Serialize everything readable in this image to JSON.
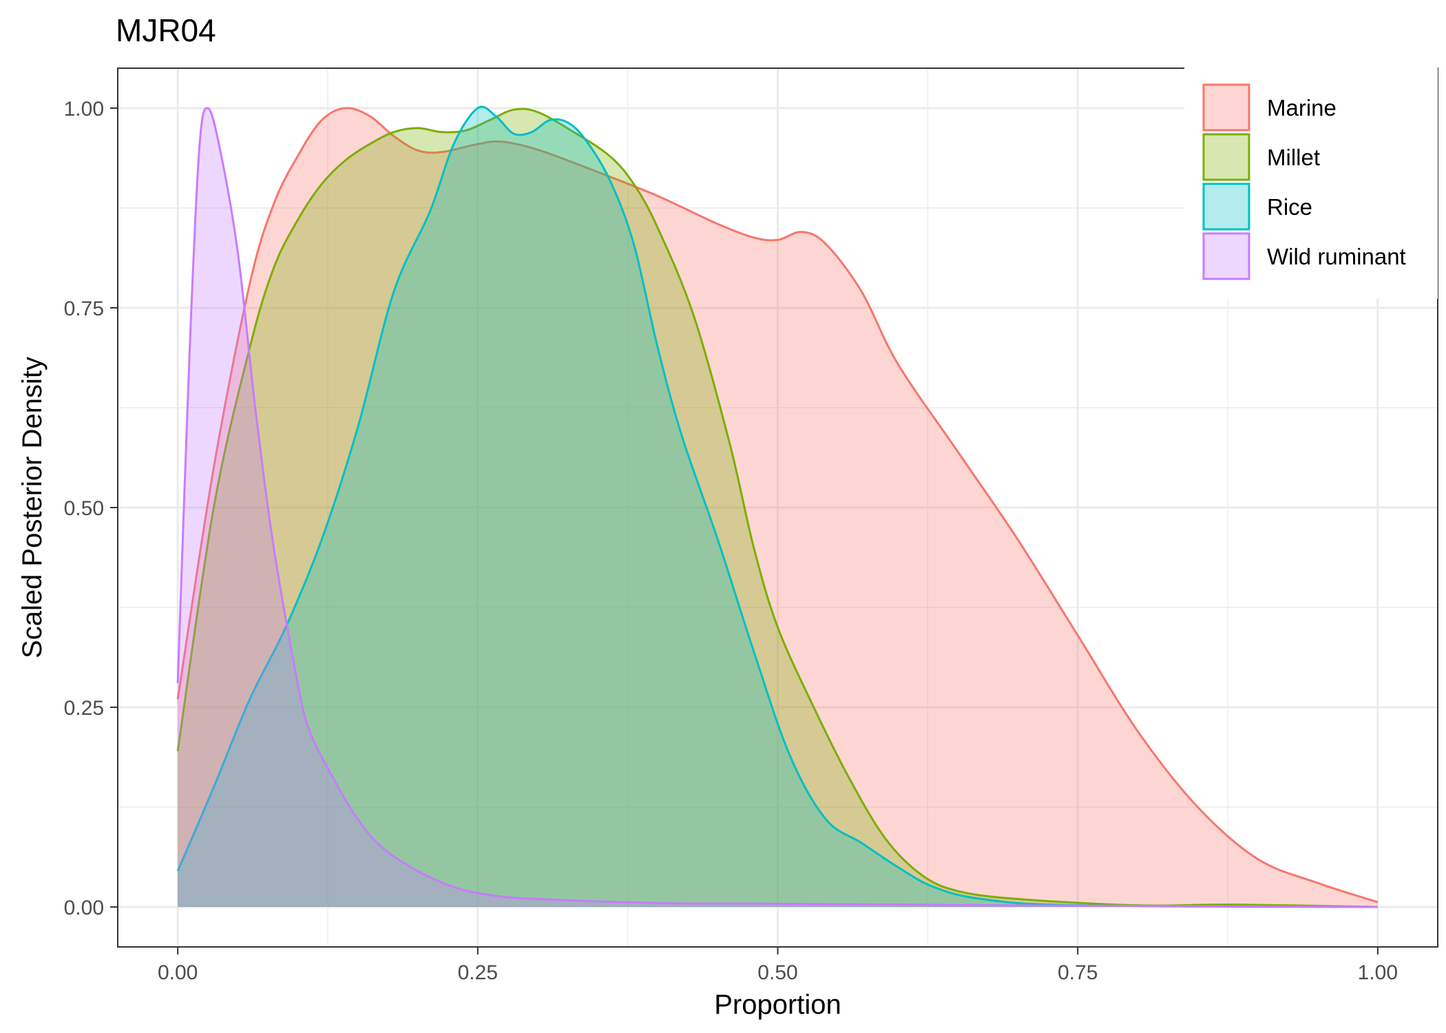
{
  "chart_data": {
    "type": "area",
    "title": "MJR04",
    "xlabel": "Proportion",
    "ylabel": "Scaled Posterior Density",
    "xlim": [
      -0.05,
      1.05
    ],
    "ylim": [
      -0.05,
      1.05
    ],
    "x_ticks": [
      0,
      0.25,
      0.5,
      0.75,
      1.0
    ],
    "x_tick_labels": [
      "0.00",
      "0.25",
      "0.50",
      "0.75",
      "1.00"
    ],
    "y_ticks": [
      0,
      0.25,
      0.5,
      0.75,
      1.0
    ],
    "y_tick_labels": [
      "0.00",
      "0.25",
      "0.50",
      "0.75",
      "1.00"
    ],
    "grid": true,
    "legend_position": "top-right",
    "series": [
      {
        "name": "Marine",
        "color": "#F8766D",
        "points": [
          [
            0,
            0.26
          ],
          [
            0.03,
            0.55
          ],
          [
            0.06,
            0.78
          ],
          [
            0.08,
            0.88
          ],
          [
            0.1,
            0.94
          ],
          [
            0.12,
            0.985
          ],
          [
            0.14,
            1.0
          ],
          [
            0.16,
            0.99
          ],
          [
            0.18,
            0.965
          ],
          [
            0.2,
            0.947
          ],
          [
            0.22,
            0.945
          ],
          [
            0.25,
            0.955
          ],
          [
            0.27,
            0.958
          ],
          [
            0.3,
            0.948
          ],
          [
            0.35,
            0.92
          ],
          [
            0.4,
            0.89
          ],
          [
            0.45,
            0.855
          ],
          [
            0.48,
            0.838
          ],
          [
            0.5,
            0.835
          ],
          [
            0.52,
            0.845
          ],
          [
            0.54,
            0.83
          ],
          [
            0.57,
            0.77
          ],
          [
            0.6,
            0.68
          ],
          [
            0.65,
            0.57
          ],
          [
            0.7,
            0.46
          ],
          [
            0.75,
            0.34
          ],
          [
            0.8,
            0.22
          ],
          [
            0.85,
            0.125
          ],
          [
            0.9,
            0.06
          ],
          [
            0.95,
            0.03
          ],
          [
            1.0,
            0.006
          ]
        ]
      },
      {
        "name": "Millet",
        "color": "#7CAE00",
        "points": [
          [
            0,
            0.195
          ],
          [
            0.03,
            0.5
          ],
          [
            0.06,
            0.7
          ],
          [
            0.08,
            0.8
          ],
          [
            0.1,
            0.86
          ],
          [
            0.12,
            0.905
          ],
          [
            0.14,
            0.935
          ],
          [
            0.16,
            0.955
          ],
          [
            0.18,
            0.97
          ],
          [
            0.2,
            0.975
          ],
          [
            0.22,
            0.97
          ],
          [
            0.24,
            0.972
          ],
          [
            0.26,
            0.985
          ],
          [
            0.28,
            0.998
          ],
          [
            0.3,
            0.995
          ],
          [
            0.33,
            0.97
          ],
          [
            0.36,
            0.94
          ],
          [
            0.38,
            0.905
          ],
          [
            0.4,
            0.85
          ],
          [
            0.43,
            0.74
          ],
          [
            0.46,
            0.58
          ],
          [
            0.48,
            0.45
          ],
          [
            0.5,
            0.35
          ],
          [
            0.53,
            0.25
          ],
          [
            0.56,
            0.16
          ],
          [
            0.59,
            0.085
          ],
          [
            0.62,
            0.04
          ],
          [
            0.65,
            0.02
          ],
          [
            0.7,
            0.01
          ],
          [
            0.8,
            0.002
          ],
          [
            0.88,
            0.003
          ],
          [
            1.0,
            0.0
          ]
        ]
      },
      {
        "name": "Rice",
        "color": "#00BFC4",
        "points": [
          [
            0,
            0.045
          ],
          [
            0.03,
            0.15
          ],
          [
            0.06,
            0.26
          ],
          [
            0.09,
            0.35
          ],
          [
            0.12,
            0.46
          ],
          [
            0.15,
            0.6
          ],
          [
            0.18,
            0.77
          ],
          [
            0.21,
            0.87
          ],
          [
            0.23,
            0.955
          ],
          [
            0.25,
            1.0
          ],
          [
            0.265,
            0.99
          ],
          [
            0.28,
            0.968
          ],
          [
            0.295,
            0.97
          ],
          [
            0.31,
            0.985
          ],
          [
            0.325,
            0.982
          ],
          [
            0.34,
            0.96
          ],
          [
            0.36,
            0.91
          ],
          [
            0.38,
            0.83
          ],
          [
            0.4,
            0.7
          ],
          [
            0.42,
            0.59
          ],
          [
            0.45,
            0.46
          ],
          [
            0.48,
            0.32
          ],
          [
            0.51,
            0.19
          ],
          [
            0.54,
            0.11
          ],
          [
            0.57,
            0.08
          ],
          [
            0.6,
            0.05
          ],
          [
            0.63,
            0.025
          ],
          [
            0.67,
            0.01
          ],
          [
            0.75,
            0.002
          ],
          [
            1.0,
            0.0
          ]
        ]
      },
      {
        "name": "Wild ruminant",
        "color": "#C77CFF",
        "points": [
          [
            0,
            0.28
          ],
          [
            0.01,
            0.7
          ],
          [
            0.018,
            0.95
          ],
          [
            0.025,
            1.0
          ],
          [
            0.035,
            0.95
          ],
          [
            0.05,
            0.82
          ],
          [
            0.065,
            0.62
          ],
          [
            0.08,
            0.45
          ],
          [
            0.1,
            0.28
          ],
          [
            0.11,
            0.22
          ],
          [
            0.13,
            0.16
          ],
          [
            0.15,
            0.11
          ],
          [
            0.17,
            0.075
          ],
          [
            0.2,
            0.045
          ],
          [
            0.23,
            0.025
          ],
          [
            0.26,
            0.015
          ],
          [
            0.3,
            0.01
          ],
          [
            0.4,
            0.005
          ],
          [
            0.5,
            0.004
          ],
          [
            0.7,
            0.002
          ],
          [
            1.0,
            0.0
          ]
        ]
      }
    ]
  }
}
